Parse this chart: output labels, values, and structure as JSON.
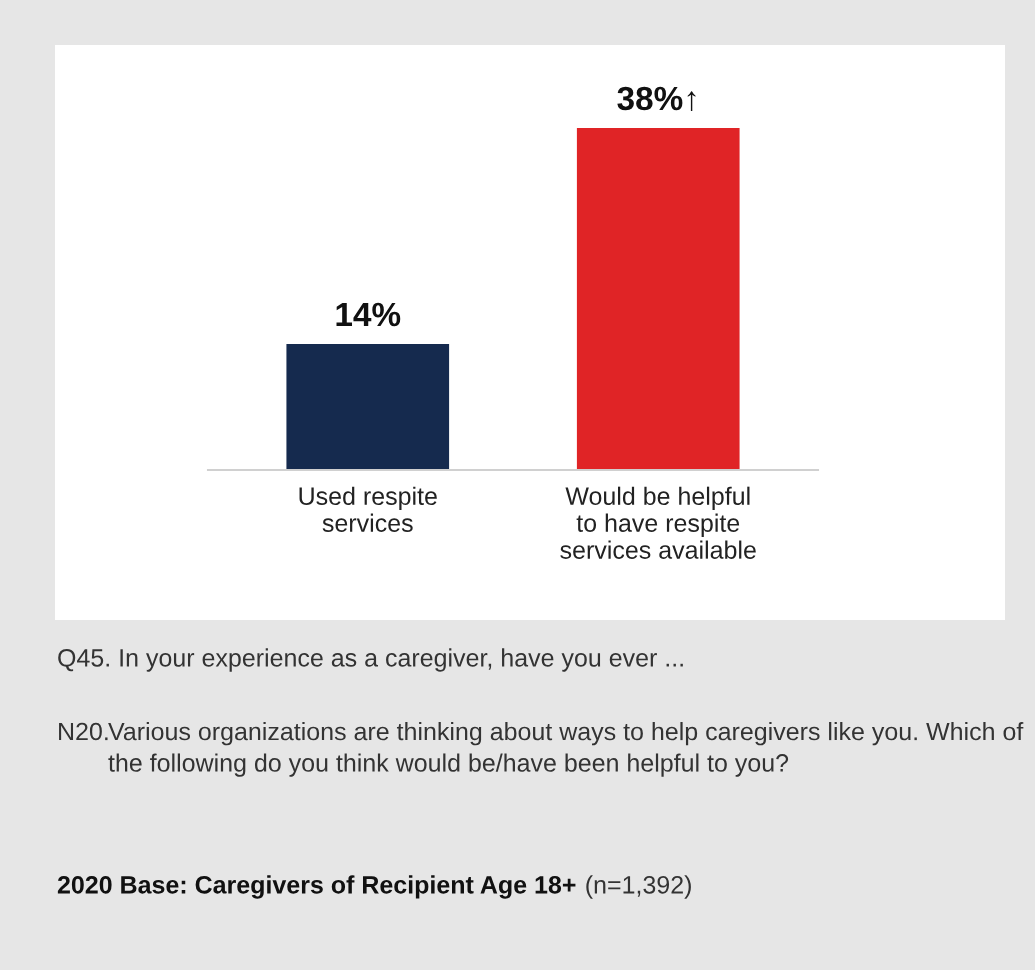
{
  "chart_data": {
    "type": "bar",
    "categories": [
      "Used respite\nservices",
      "Would be helpful\nto have respite\nservices available"
    ],
    "values": [
      14,
      38
    ],
    "colors": [
      "#152a4e",
      "#e02426"
    ],
    "value_labels": [
      "14%",
      "38%↑"
    ],
    "annotations": [
      "Q45. In your experience as a caregiver, have you ever ...",
      "N20. Various organizations are thinking about ways to help caregivers like you. Which of the following do you think would be/have been helpful to you?",
      "2020 Base: Caregivers of Recipient Age 18+",
      "(n=1,392)"
    ]
  }
}
